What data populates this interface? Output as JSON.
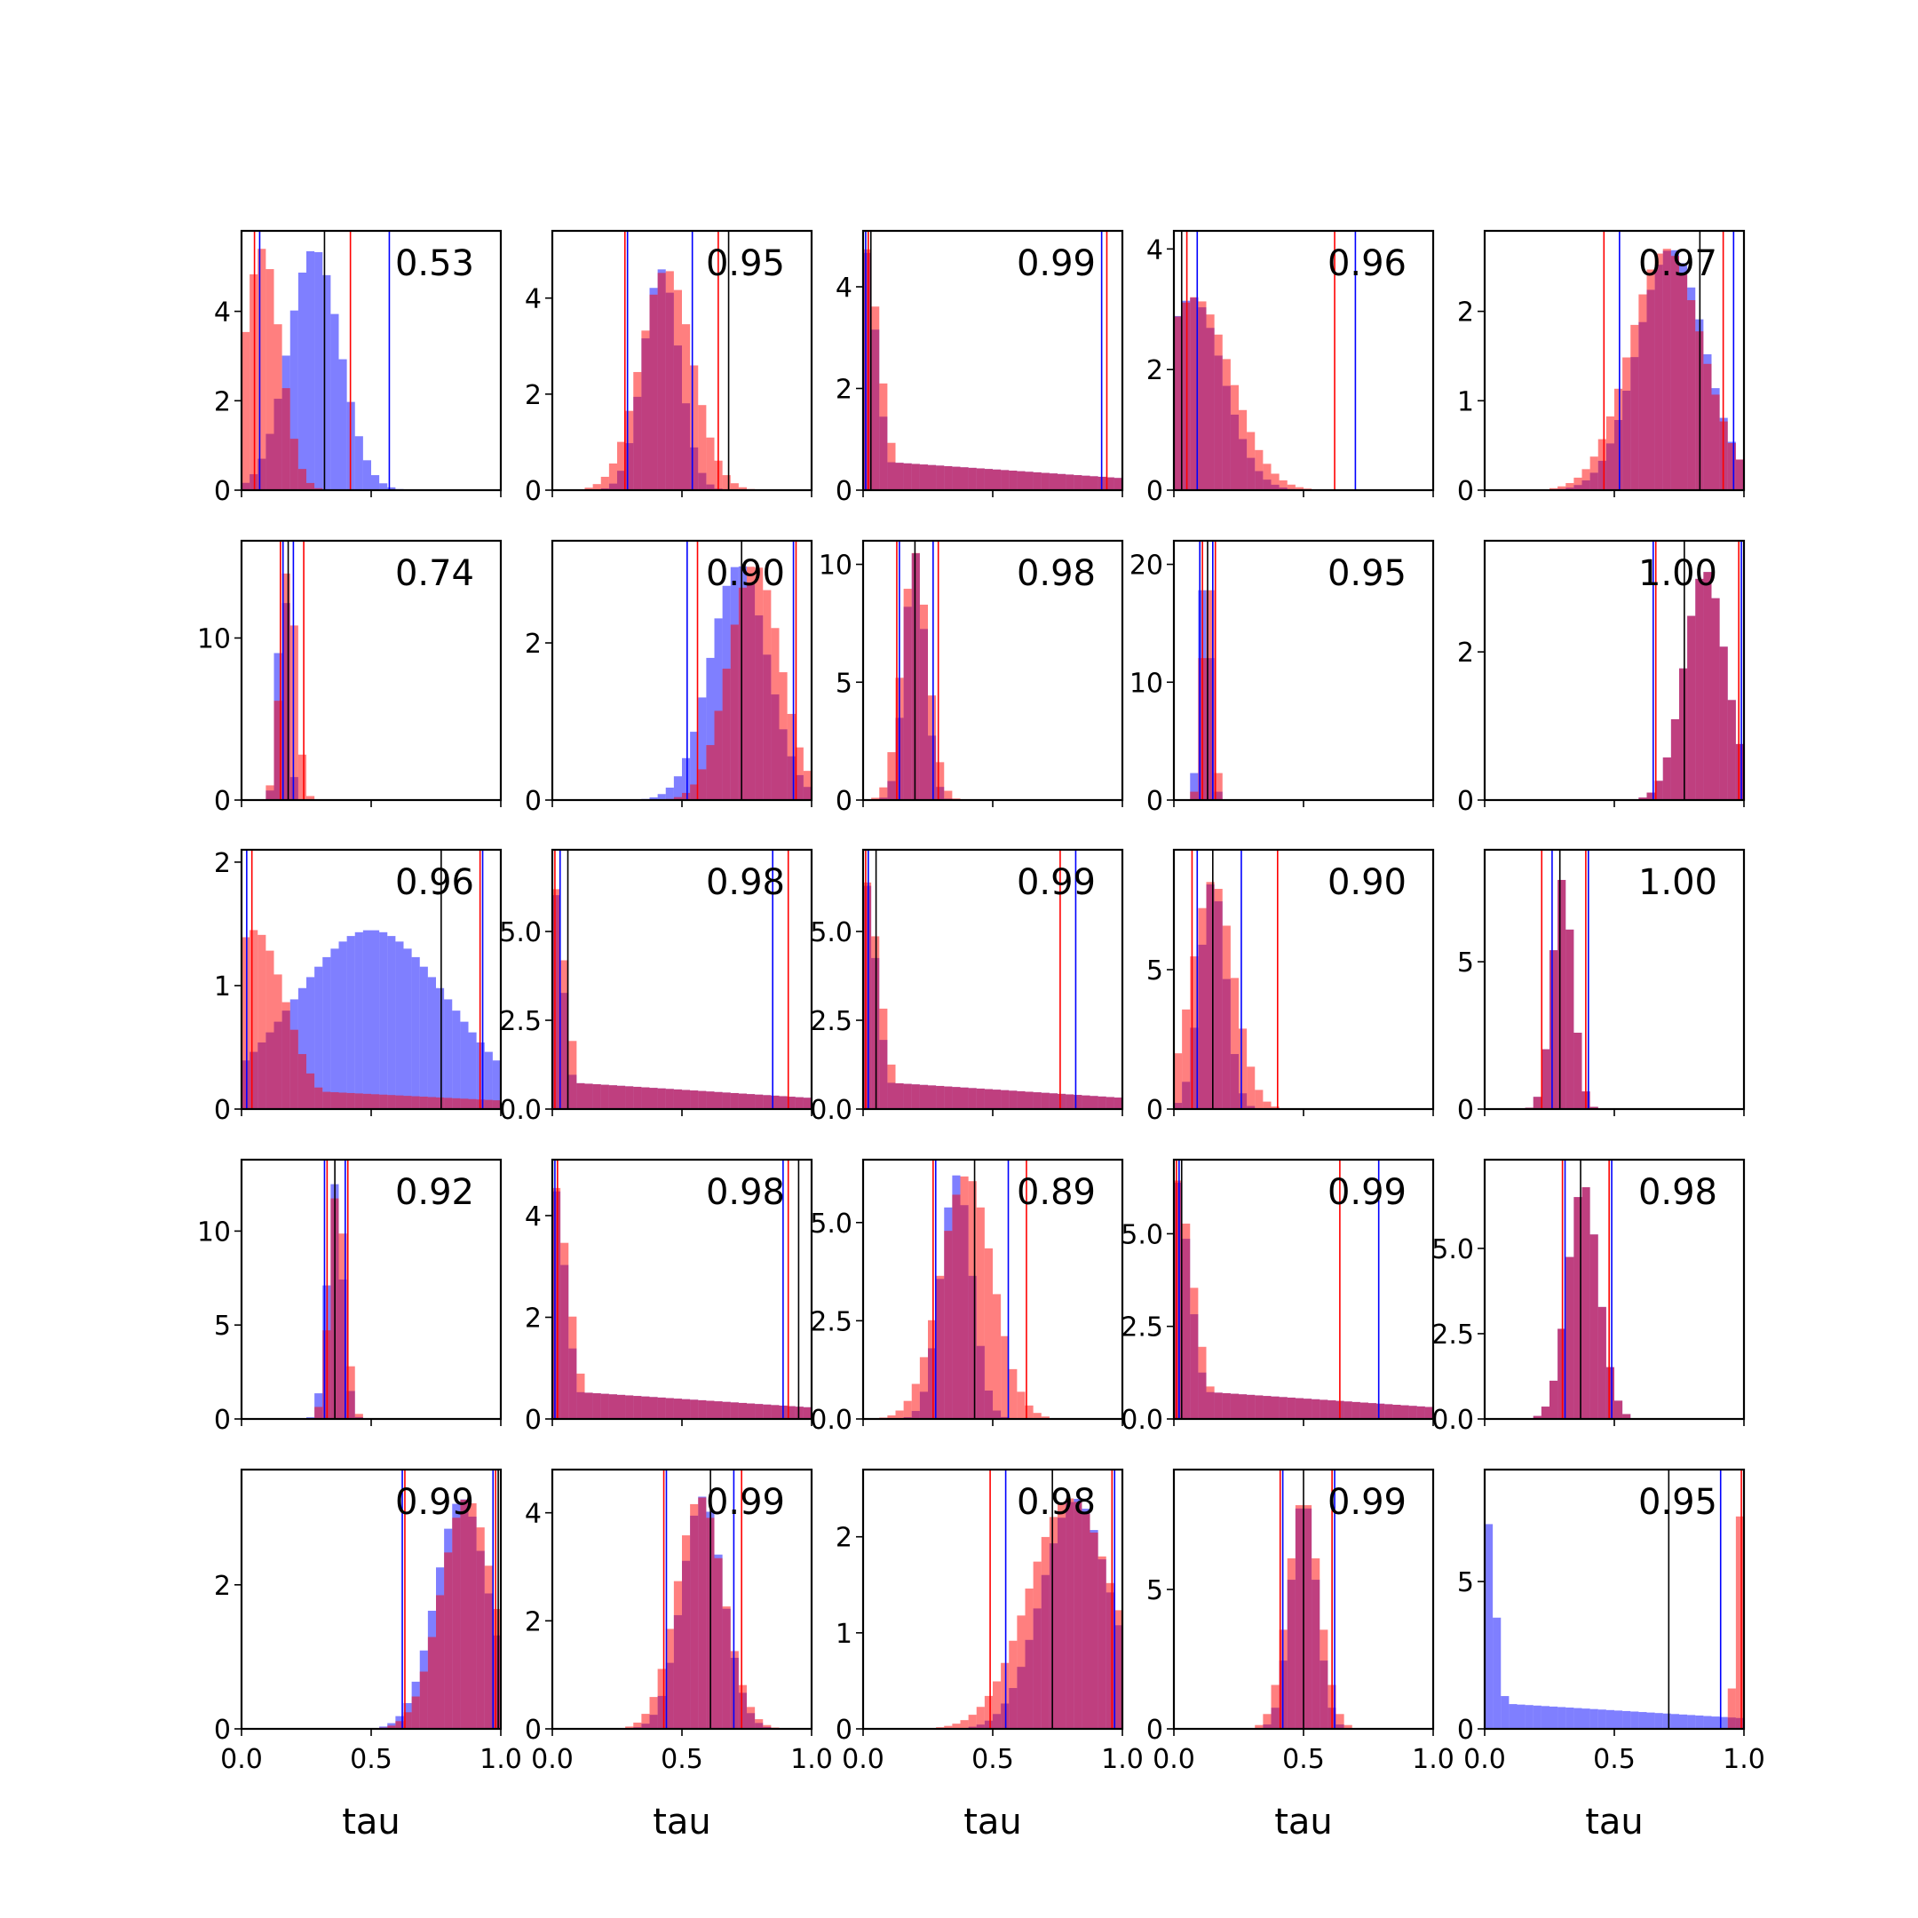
{
  "chart_data": {
    "type": "bar",
    "layout": "5x5 grid of histograms, x shared per column",
    "xlabel": "tau",
    "xlim": [
      0,
      1
    ],
    "x_ticks": [
      "0.0",
      "0.5",
      "1.0"
    ],
    "series_colors": {
      "blue": "#0000ff",
      "red": "#ff0000",
      "black": "#000000"
    },
    "panels": [
      {
        "label": "0.53",
        "ylim": [
          0,
          5.8
        ],
        "y_ticks": [
          0,
          2,
          4
        ],
        "blue_peak": 0.28,
        "blue_width": 0.1,
        "red_peak": 0.08,
        "red_width": 0.07,
        "mode_height": 5.4,
        "lines": {
          "red": [
            0.05,
            0.42
          ],
          "blue": [
            0.07,
            0.57
          ],
          "black": [
            0.32
          ]
        }
      },
      {
        "label": "0.95",
        "ylim": [
          0,
          5.4
        ],
        "y_ticks": [
          0,
          2,
          4
        ],
        "blue_peak": 0.42,
        "blue_width": 0.07,
        "red_peak": 0.44,
        "red_width": 0.1,
        "mode_height": 4.6,
        "lines": {
          "red": [
            0.28,
            0.64
          ],
          "blue": [
            0.29,
            0.54
          ],
          "black": [
            0.68
          ]
        }
      },
      {
        "label": "0.99",
        "ylim": [
          0,
          5.1
        ],
        "y_ticks": [
          0,
          2,
          4
        ],
        "blue_peak": 0.0,
        "blue_width": 0.05,
        "red_peak": 0.0,
        "red_width": 0.06,
        "mode_height": 4.9,
        "lines": {
          "red": [
            0.02,
            0.94
          ],
          "blue": [
            0.01,
            0.92
          ],
          "black": [
            0.03
          ]
        }
      },
      {
        "label": "0.96",
        "ylim": [
          0,
          4.3
        ],
        "y_ticks": [
          0,
          2,
          4
        ],
        "blue_peak": 0.07,
        "blue_width": 0.12,
        "red_peak": 0.08,
        "red_width": 0.14,
        "mode_height": 3.2,
        "lines": {
          "red": [
            0.05,
            0.62
          ],
          "blue": [
            0.09,
            0.7
          ],
          "black": [
            0.03
          ]
        }
      },
      {
        "label": "0.97",
        "ylim": [
          0,
          2.9
        ],
        "y_ticks": [
          0,
          1,
          2
        ],
        "blue_peak": 0.72,
        "blue_width": 0.13,
        "red_peak": 0.7,
        "red_width": 0.14,
        "mode_height": 2.7,
        "lines": {
          "red": [
            0.46,
            0.92
          ],
          "blue": [
            0.52,
            0.96
          ],
          "black": [
            0.83
          ]
        }
      },
      {
        "label": "0.74",
        "ylim": [
          0,
          16
        ],
        "y_ticks": [
          0,
          10
        ],
        "blue_peak": 0.16,
        "blue_width": 0.02,
        "red_peak": 0.18,
        "red_width": 0.03,
        "mode_height": 14.5,
        "lines": {
          "red": [
            0.15,
            0.24
          ],
          "blue": [
            0.16,
            0.2
          ],
          "black": [
            0.18
          ]
        }
      },
      {
        "label": "0.90",
        "ylim": [
          0,
          3.3
        ],
        "y_ticks": [
          0,
          2
        ],
        "blue_peak": 0.72,
        "blue_width": 0.11,
        "red_peak": 0.78,
        "red_width": 0.1,
        "mode_height": 3.0,
        "lines": {
          "red": [
            0.56,
            0.94
          ],
          "blue": [
            0.52,
            0.93
          ],
          "black": [
            0.73
          ]
        }
      },
      {
        "label": "0.98",
        "ylim": [
          0,
          11
        ],
        "y_ticks": [
          0,
          5,
          10
        ],
        "blue_peak": 0.2,
        "blue_width": 0.04,
        "red_peak": 0.2,
        "red_width": 0.05,
        "mode_height": 10.5,
        "lines": {
          "red": [
            0.13,
            0.29
          ],
          "blue": [
            0.14,
            0.27
          ],
          "black": [
            0.2
          ]
        }
      },
      {
        "label": "0.95",
        "ylim": [
          0,
          22
        ],
        "y_ticks": [
          0,
          10,
          20
        ],
        "blue_peak": 0.12,
        "blue_width": 0.02,
        "red_peak": 0.13,
        "red_width": 0.02,
        "mode_height": 20.5,
        "lines": {
          "red": [
            0.11,
            0.16
          ],
          "blue": [
            0.1,
            0.15
          ],
          "black": [
            0.13
          ]
        }
      },
      {
        "label": "1.00",
        "ylim": [
          0,
          3.5
        ],
        "y_ticks": [
          0,
          2
        ],
        "blue_peak": 0.85,
        "blue_width": 0.08,
        "red_peak": 0.85,
        "red_width": 0.08,
        "mode_height": 3.1,
        "lines": {
          "red": [
            0.66,
            0.98
          ],
          "blue": [
            0.65,
            0.99
          ],
          "black": [
            0.77
          ]
        }
      },
      {
        "label": "0.96",
        "ylim": [
          0,
          2.1
        ],
        "y_ticks": [
          0,
          1,
          2
        ],
        "blue_peak": 0.5,
        "blue_width": 0.3,
        "red_peak": 0.05,
        "red_width": 0.12,
        "mode_height": 1.45,
        "lines": {
          "red": [
            0.04,
            0.92
          ],
          "blue": [
            0.02,
            0.93
          ],
          "black": [
            0.77
          ]
        }
      },
      {
        "label": "0.98",
        "ylim": [
          0,
          7.3
        ],
        "y_ticks": [
          "0.0",
          "2.5",
          "5.0"
        ],
        "blue_peak": 0.0,
        "blue_width": 0.04,
        "red_peak": 0.0,
        "red_width": 0.05,
        "mode_height": 6.5,
        "lines": {
          "red": [
            0.01,
            0.91
          ],
          "blue": [
            0.85,
            0.03
          ],
          "black": [
            0.06
          ]
        }
      },
      {
        "label": "0.99",
        "ylim": [
          0,
          7.3
        ],
        "y_ticks": [
          "0.0",
          "2.5",
          "5.0"
        ],
        "blue_peak": 0.0,
        "blue_width": 0.05,
        "red_peak": 0.0,
        "red_width": 0.06,
        "mode_height": 6.6,
        "lines": {
          "red": [
            0.76,
            0.01
          ],
          "blue": [
            0.82,
            0.02
          ],
          "black": [
            0.05
          ]
        }
      },
      {
        "label": "0.90",
        "ylim": [
          0,
          9.3
        ],
        "y_ticks": [
          0,
          5
        ],
        "blue_peak": 0.15,
        "blue_width": 0.05,
        "red_peak": 0.15,
        "red_width": 0.08,
        "mode_height": 8.2,
        "lines": {
          "red": [
            0.07,
            0.4
          ],
          "blue": [
            0.09,
            0.26
          ],
          "black": [
            0.15
          ]
        }
      },
      {
        "label": "1.00",
        "ylim": [
          0,
          8.8
        ],
        "y_ticks": [
          0,
          5
        ],
        "blue_peak": 0.3,
        "blue_width": 0.04,
        "red_peak": 0.3,
        "red_width": 0.04,
        "mode_height": 7.8,
        "lines": {
          "red": [
            0.22,
            0.39
          ],
          "blue": [
            0.26,
            0.4
          ],
          "black": [
            0.29
          ]
        }
      },
      {
        "label": "0.92",
        "ylim": [
          0,
          13.8
        ],
        "y_ticks": [
          0,
          5,
          10
        ],
        "blue_peak": 0.36,
        "blue_width": 0.03,
        "red_peak": 0.37,
        "red_width": 0.03,
        "mode_height": 12.5,
        "lines": {
          "red": [
            0.33,
            0.41
          ],
          "blue": [
            0.32,
            0.4
          ],
          "black": [
            0.36
          ]
        }
      },
      {
        "label": "0.98",
        "ylim": [
          0,
          5.1
        ],
        "y_ticks": [
          0,
          2,
          4
        ],
        "blue_peak": 0.0,
        "blue_width": 0.05,
        "red_peak": 0.0,
        "red_width": 0.06,
        "mode_height": 4.7,
        "lines": {
          "red": [
            0.02,
            0.91
          ],
          "blue": [
            0.89,
            0.01
          ],
          "black": [
            0.95
          ]
        }
      },
      {
        "label": "0.89",
        "ylim": [
          0,
          6.6
        ],
        "y_ticks": [
          "0.0",
          "2.5",
          "5.0"
        ],
        "blue_peak": 0.36,
        "blue_width": 0.06,
        "red_peak": 0.4,
        "red_width": 0.1,
        "mode_height": 6.2,
        "lines": {
          "red": [
            0.27,
            0.63
          ],
          "blue": [
            0.56,
            0.28
          ],
          "black": [
            0.43
          ]
        }
      },
      {
        "label": "0.99",
        "ylim": [
          0,
          7.0
        ],
        "y_ticks": [
          "0.0",
          "2.5",
          "5.0"
        ],
        "blue_peak": 0.0,
        "blue_width": 0.06,
        "red_peak": 0.0,
        "red_width": 0.07,
        "mode_height": 6.6,
        "lines": {
          "red": [
            0.64,
            0.01
          ],
          "blue": [
            0.79,
            0.02
          ],
          "black": [
            0.03
          ]
        }
      },
      {
        "label": "0.98",
        "ylim": [
          0,
          7.6
        ],
        "y_ticks": [
          "0.0",
          "2.5",
          "5.0"
        ],
        "blue_peak": 0.38,
        "blue_width": 0.06,
        "red_peak": 0.38,
        "red_width": 0.06,
        "mode_height": 6.9,
        "lines": {
          "red": [
            0.3,
            0.48
          ],
          "blue": [
            0.31,
            0.49
          ],
          "black": [
            0.37
          ]
        }
      },
      {
        "label": "0.99",
        "ylim": [
          0,
          3.6
        ],
        "y_ticks": [
          0,
          2
        ],
        "blue_peak": 0.85,
        "blue_width": 0.1,
        "red_peak": 0.87,
        "red_width": 0.1,
        "mode_height": 3.2,
        "lines": {
          "red": [
            0.63,
            0.98
          ],
          "blue": [
            0.62,
            0.97
          ],
          "black": [
            0.99
          ]
        }
      },
      {
        "label": "0.99",
        "ylim": [
          0,
          4.8
        ],
        "y_ticks": [
          0,
          2,
          4
        ],
        "blue_peak": 0.58,
        "blue_width": 0.08,
        "red_peak": 0.57,
        "red_width": 0.09,
        "mode_height": 4.3,
        "lines": {
          "red": [
            0.43,
            0.73
          ],
          "blue": [
            0.44,
            0.7
          ],
          "black": [
            0.61
          ]
        }
      },
      {
        "label": "0.98",
        "ylim": [
          0,
          2.7
        ],
        "y_ticks": [
          0,
          1,
          2
        ],
        "blue_peak": 0.82,
        "blue_width": 0.13,
        "red_peak": 0.8,
        "red_width": 0.16,
        "mode_height": 2.4,
        "lines": {
          "red": [
            0.49,
            0.96
          ],
          "blue": [
            0.55,
            0.97
          ],
          "black": [
            0.73
          ]
        }
      },
      {
        "label": "0.99",
        "ylim": [
          0,
          9.3
        ],
        "y_ticks": [
          0,
          5
        ],
        "blue_peak": 0.5,
        "blue_width": 0.05,
        "red_peak": 0.5,
        "red_width": 0.06,
        "mode_height": 8.3,
        "lines": {
          "red": [
            0.41,
            0.61
          ],
          "blue": [
            0.42,
            0.62
          ],
          "black": [
            0.5
          ]
        }
      },
      {
        "label": "0.95",
        "ylim": [
          0,
          8.8
        ],
        "y_ticks": [
          0,
          5
        ],
        "blue_peak": 0.0,
        "blue_width": 0.04,
        "red_peak": 0.99,
        "red_width": 0.02,
        "mode_height": 7.5,
        "lines": {
          "red": [
            0.99
          ],
          "blue": [
            0.91
          ],
          "black": [
            0.71
          ]
        }
      }
    ]
  }
}
